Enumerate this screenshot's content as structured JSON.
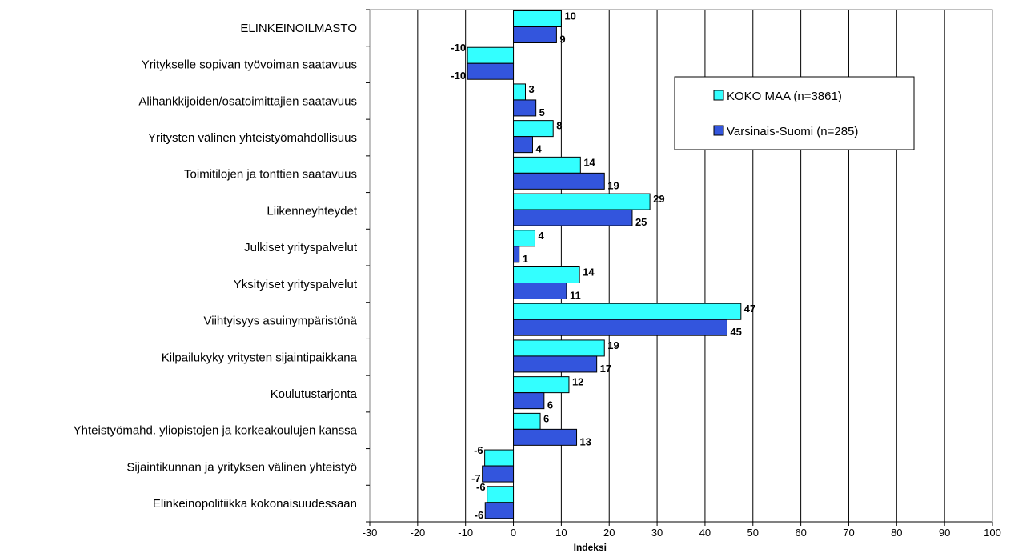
{
  "chart_data": {
    "type": "bar",
    "orientation": "horizontal",
    "categories": [
      "ELINKEINOILMASTO",
      "Yritykselle sopivan työvoiman saatavuus",
      "Alihankkijoiden/osatoimittajien saatavuus",
      "Yritysten välinen yhteistyömahdollisuus",
      "Toimitilojen ja tonttien saatavuus",
      "Liikenneyhteydet",
      "Julkiset yrityspalvelut",
      "Yksityiset yrityspalvelut",
      "Viihtyisyys asuinympäristönä",
      "Kilpailukyky yritysten sijaintipaikkana",
      "Koulutustarjonta",
      "Yhteistyömahd. yliopistojen ja korkeakoulujen kanssa",
      "Sijaintikunnan ja yrityksen välinen yhteistyö",
      "Elinkeinopolitiikka kokonaisuudessaan"
    ],
    "series": [
      {
        "name": "KOKO MAA (n=3861)",
        "color": "#33ffff",
        "values": [
          10,
          -10,
          3,
          8,
          14,
          29,
          4,
          14,
          47,
          19,
          12,
          6,
          -6,
          -6
        ],
        "bar_values": [
          10,
          -9.6,
          2.5,
          8.3,
          14.0,
          28.5,
          4.5,
          13.8,
          47.5,
          19.0,
          11.6,
          5.6,
          -6.0,
          -5.5
        ]
      },
      {
        "name": "Varsinais-Suomi (n=285)",
        "color": "#3355dd",
        "values": [
          9,
          -10,
          5,
          4,
          19,
          25,
          1,
          11,
          45,
          17,
          6,
          13,
          -7,
          -6
        ],
        "bar_values": [
          9.0,
          -9.6,
          4.7,
          4.0,
          19.0,
          24.8,
          1.2,
          11.1,
          44.6,
          17.4,
          6.4,
          13.2,
          -6.5,
          -5.9
        ]
      }
    ],
    "xlabel": "Indeksi",
    "ylabel": "",
    "xlim": [
      -30,
      100
    ],
    "xticks": [
      -30,
      -20,
      -10,
      0,
      10,
      20,
      30,
      40,
      50,
      60,
      70,
      80,
      90,
      100
    ],
    "grid": true,
    "legend": "upper-right"
  }
}
